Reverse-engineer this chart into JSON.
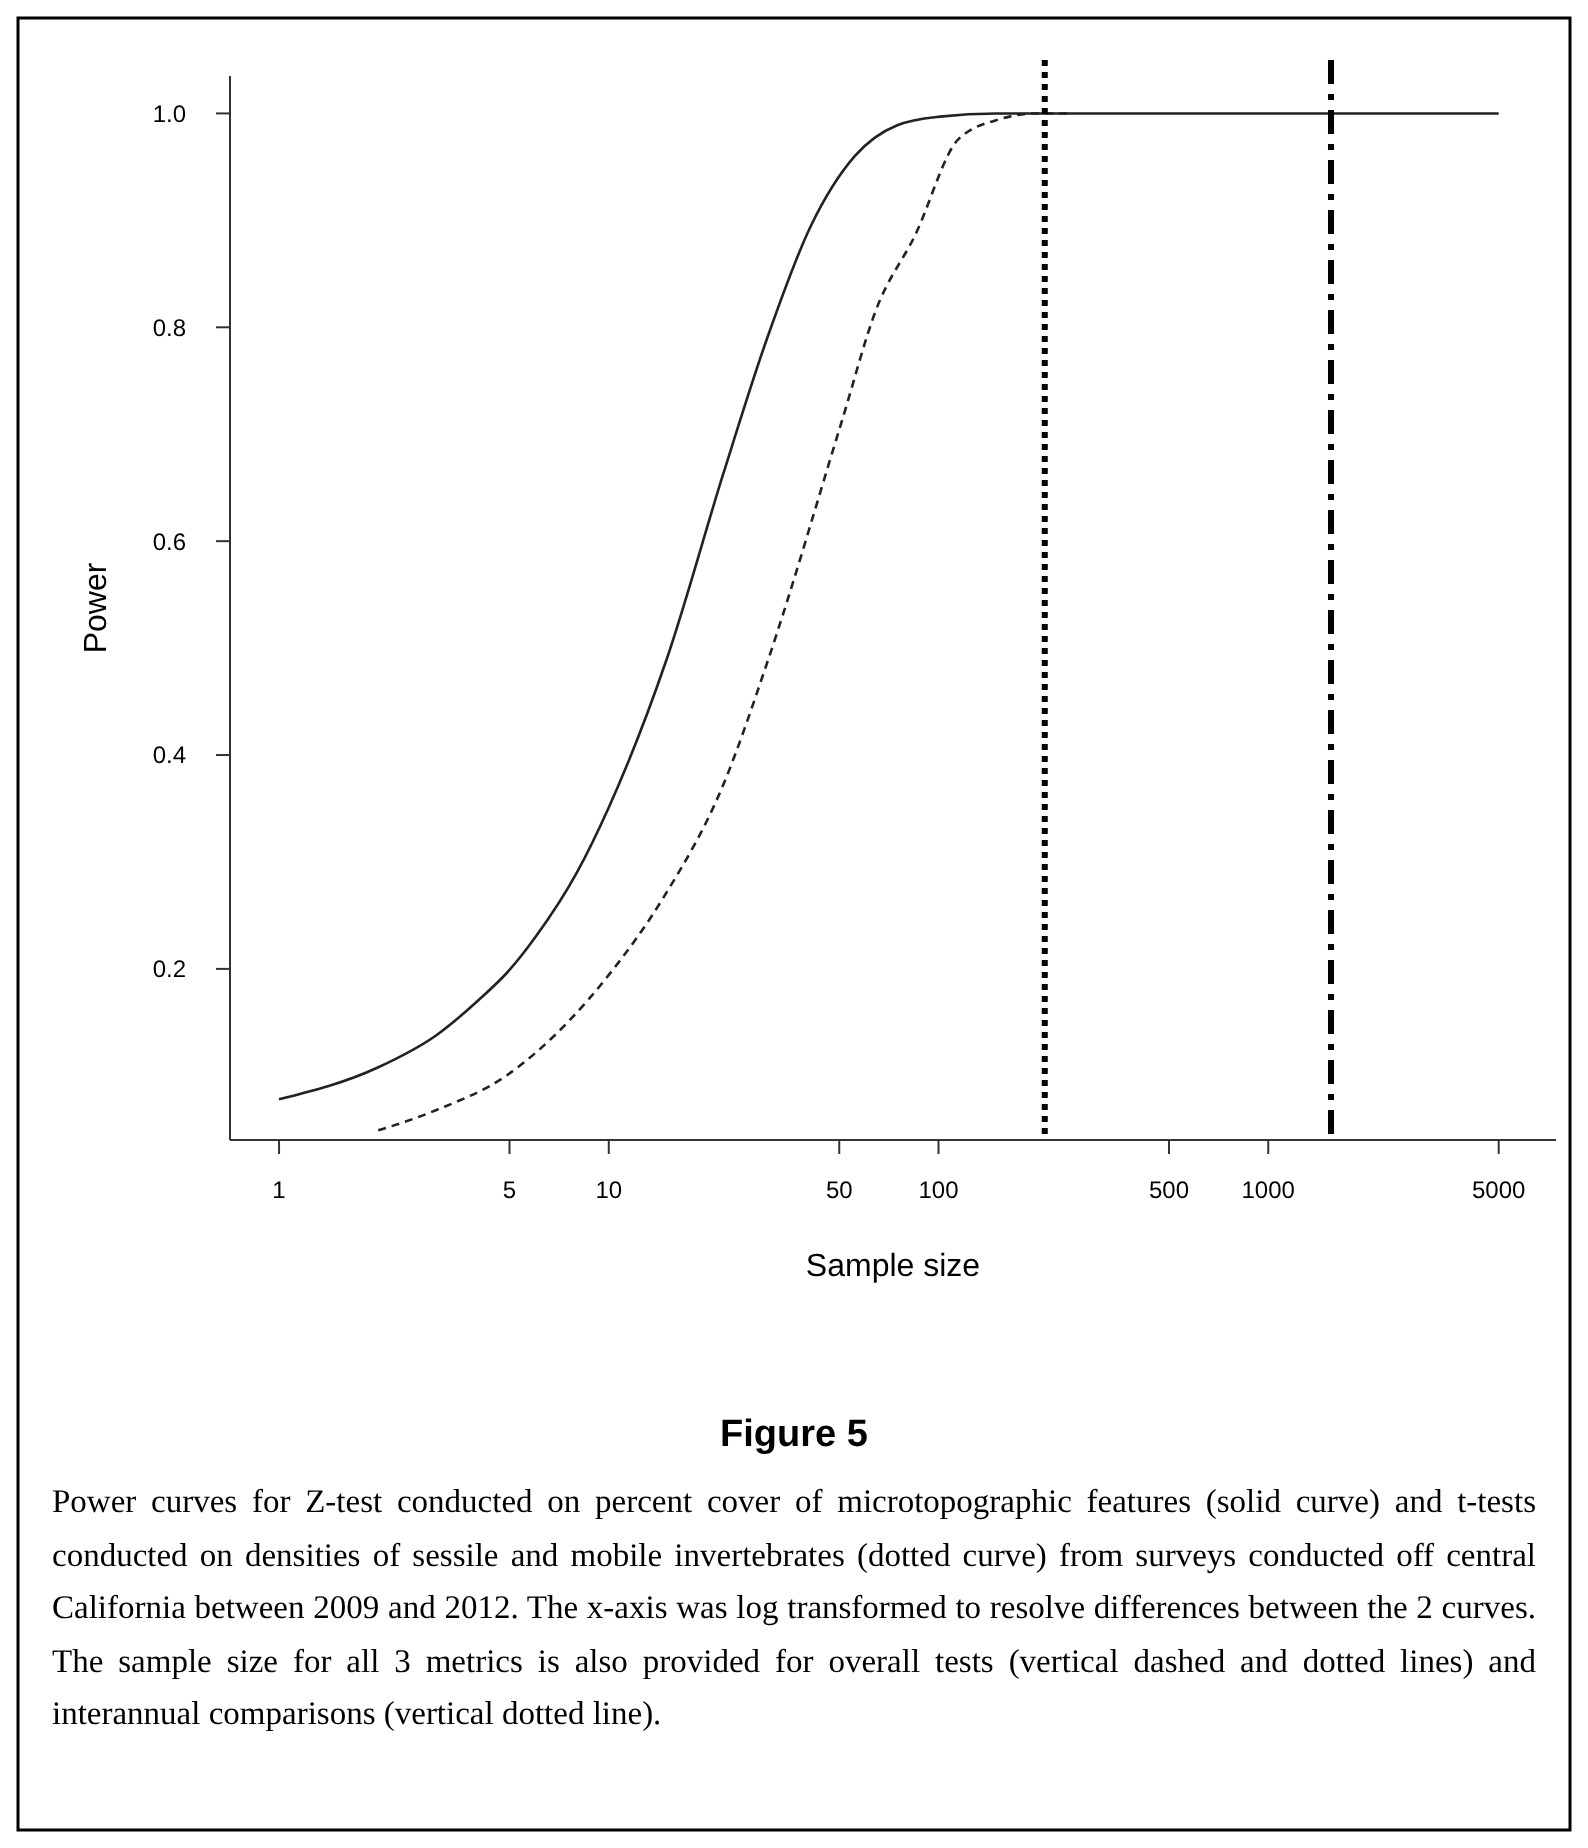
{
  "chart_data": {
    "type": "line",
    "title": "Figure 5",
    "xlabel": "Sample size",
    "ylabel": "Power",
    "log": "x",
    "xlim": [
      0.71,
      7460
    ],
    "xticks": [
      1,
      5,
      10,
      50,
      100,
      500,
      1000,
      5000
    ],
    "ylim": [
      0.04,
      1.035
    ],
    "yticks": [
      0.2,
      0.4,
      0.6,
      0.8,
      {
        "value": 1,
        "label": "1.0"
      }
    ],
    "grid": false,
    "marker": "none",
    "series": [
      {
        "color": "#222222",
        "line_style": "solid",
        "x": [
          1,
          2,
          3,
          4,
          5,
          6,
          8,
          10,
          15,
          22.3,
          30,
          40.9,
          55.7,
          75,
          101,
          150,
          300,
          1000,
          5000
        ],
        "values": [
          0.078,
          0.108,
          0.138,
          0.17,
          0.199,
          0.23,
          0.29,
          0.351,
          0.49,
          0.664,
          0.787,
          0.894,
          0.96,
          0.989,
          0.997,
          1.0,
          1.0,
          1.0,
          1.0
        ]
      },
      {
        "color": "#222222",
        "line_style": "dashed",
        "x": [
          2,
          3,
          4.88,
          7.5,
          10.1,
          14.6,
          22.3,
          30.5,
          51,
          64.6,
          84.9,
          115,
          155,
          197,
          254
        ],
        "values": [
          0.049,
          0.068,
          0.1,
          0.15,
          0.196,
          0.266,
          0.373,
          0.49,
          0.713,
          0.816,
          0.886,
          0.976,
          0.995,
          1.0,
          1.0
        ]
      }
    ],
    "ref_lines": [
      {
        "axis": "x",
        "value": 210,
        "color": "#000000",
        "line_style": "dotted"
      },
      {
        "axis": "x",
        "value": 1550,
        "color": "#000000",
        "line_style": "dashed"
      }
    ],
    "annotations": [
      "Power curves for Z-test conducted on percent cover of microtopographic features (solid curve) and t-tests conducted on densities of sessile and mobile invertebrates (dotted curve) from surveys conducted off central California between 2009 and 2012. The x-axis was log transformed to resolve differences between the 2 curves. The sample size for all 3 metrics is also provided for overall tests (vertical dashed and dotted lines) and interannual comparisons (vertical dotted line)."
    ]
  }
}
